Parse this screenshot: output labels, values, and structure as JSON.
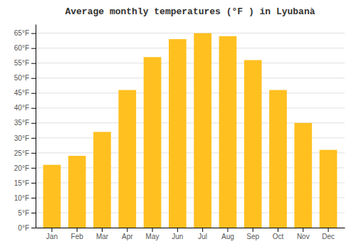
{
  "chart_data": {
    "type": "bar",
    "title": "Average monthly temperatures (°F ) in Lyubanà",
    "categories": [
      "Jan",
      "Feb",
      "Mar",
      "Apr",
      "May",
      "Jun",
      "Jul",
      "Aug",
      "Sep",
      "Oct",
      "Nov",
      "Dec"
    ],
    "values": [
      21,
      24,
      32,
      46,
      57,
      63,
      65,
      64,
      56,
      46,
      35,
      26
    ],
    "color": "#FFC020",
    "ylim": [
      0,
      68
    ],
    "yticks": [
      {
        "value": 0,
        "label": "0°F"
      },
      {
        "value": 5,
        "label": "5°F"
      },
      {
        "value": 10,
        "label": "10°F"
      },
      {
        "value": 15,
        "label": "15°F"
      },
      {
        "value": 20,
        "label": "20°F"
      },
      {
        "value": 25,
        "label": "25°F"
      },
      {
        "value": 30,
        "label": "30°F"
      },
      {
        "value": 35,
        "label": "35°F"
      },
      {
        "value": 40,
        "label": "40°F"
      },
      {
        "value": 45,
        "label": "45°F"
      },
      {
        "value": 50,
        "label": "50°F"
      },
      {
        "value": 55,
        "label": "55°F"
      },
      {
        "value": 60,
        "label": "60°F"
      },
      {
        "value": 65,
        "label": "65°F"
      }
    ],
    "grid": true
  }
}
